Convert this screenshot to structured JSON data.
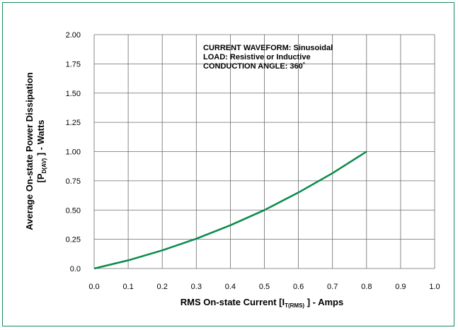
{
  "colors": {
    "curve": "#0a8a4a",
    "frame": "#1a8a5a",
    "grid": "#6b6b6b"
  },
  "chart_data": {
    "type": "line",
    "xlim": [
      0,
      1.0
    ],
    "ylim": [
      0,
      2.0
    ],
    "x_ticks": [
      "0.0",
      "0.1",
      "0.2",
      "0.3",
      "0.4",
      "0.5",
      "0.6",
      "0.7",
      "0.8",
      "0.9",
      "1.0"
    ],
    "y_ticks": [
      "0.0",
      "0.25",
      "0.50",
      "0.75",
      "1.00",
      "1.25",
      "1.50",
      "1.75",
      "2.00"
    ],
    "grid": true,
    "xlabel": {
      "pre": "RMS On-state Current [I",
      "sub": "T(RMS)",
      "post": " ] - Amps"
    },
    "ylabel": {
      "line1": "Average On-state Power Dissipation",
      "line2_pre": "[P",
      "line2_sub": "D(AV)",
      "line2_post": " ] - Watts"
    },
    "annotations": [
      "CURRENT WAVEFORM: Sinusoidal",
      "LOAD: Resistive or Inductive",
      "CONDUCTION ANGLE: 360˚"
    ],
    "series": [
      {
        "x": [
          0.0,
          0.1,
          0.2,
          0.3,
          0.4,
          0.5,
          0.6,
          0.7,
          0.8
        ],
        "y": [
          0.0,
          0.07,
          0.155,
          0.255,
          0.37,
          0.5,
          0.65,
          0.815,
          1.0
        ]
      }
    ]
  }
}
